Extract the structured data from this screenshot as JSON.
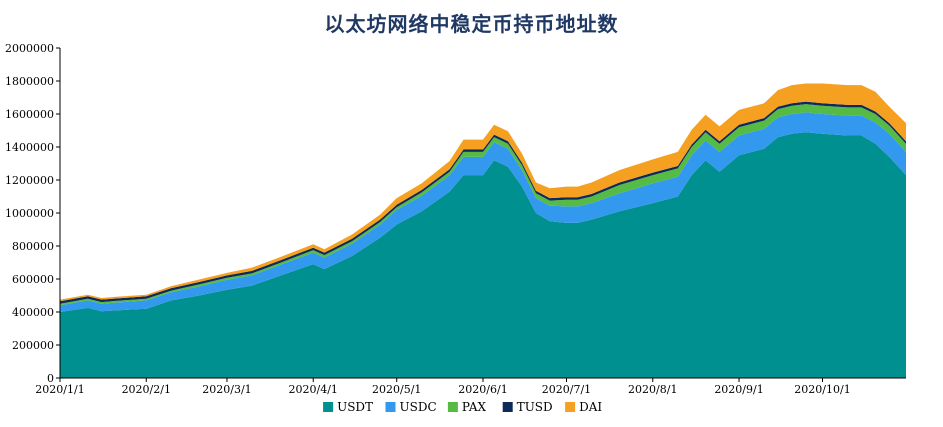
{
  "chart_data": {
    "type": "area",
    "stacked": true,
    "title": "以太坊网络中稳定币持币地址数",
    "xlabel": "",
    "ylabel": "",
    "ylim": [
      0,
      2000000
    ],
    "y_ticks": [
      0,
      200000,
      400000,
      600000,
      800000,
      1000000,
      1200000,
      1400000,
      1600000,
      1800000,
      2000000
    ],
    "y_tick_labels": [
      "0",
      "200000",
      "400000",
      "600000",
      "800000",
      "1000000",
      "1200000",
      "1400000",
      "1600000",
      "1800000",
      "2000000"
    ],
    "x_start": "2020-01-01",
    "x_end": "2020-10-31",
    "x_tick_dates": [
      "2020-01-01",
      "2020-02-01",
      "2020-03-01",
      "2020-04-01",
      "2020-05-01",
      "2020-06-01",
      "2020-07-01",
      "2020-08-01",
      "2020-09-01",
      "2020-10-01"
    ],
    "x_tick_labels": [
      "2020/1/1",
      "2020/2/1",
      "2020/3/1",
      "2020/4/1",
      "2020/5/1",
      "2020/6/1",
      "2020/7/1",
      "2020/8/1",
      "2020/9/1",
      "2020/10/1"
    ],
    "legend_position": "bottom",
    "grid": false,
    "x": [
      "2020-01-01",
      "2020-01-11",
      "2020-01-16",
      "2020-01-21",
      "2020-02-01",
      "2020-02-10",
      "2020-02-20",
      "2020-03-01",
      "2020-03-10",
      "2020-03-20",
      "2020-04-01",
      "2020-04-05",
      "2020-04-15",
      "2020-04-25",
      "2020-05-01",
      "2020-05-10",
      "2020-05-20",
      "2020-05-25",
      "2020-06-01",
      "2020-06-05",
      "2020-06-10",
      "2020-06-15",
      "2020-06-20",
      "2020-06-25",
      "2020-07-01",
      "2020-07-05",
      "2020-07-10",
      "2020-07-20",
      "2020-08-01",
      "2020-08-10",
      "2020-08-15",
      "2020-08-20",
      "2020-08-25",
      "2020-09-01",
      "2020-09-10",
      "2020-09-15",
      "2020-09-20",
      "2020-09-25",
      "2020-10-01",
      "2020-10-10",
      "2020-10-15",
      "2020-10-20",
      "2020-10-25",
      "2020-10-31"
    ],
    "series": [
      {
        "name": "USDT",
        "color": "#009090",
        "values": [
          400000,
          425000,
          405000,
          410000,
          420000,
          470000,
          500000,
          535000,
          560000,
          620000,
          690000,
          660000,
          740000,
          850000,
          930000,
          1010000,
          1130000,
          1230000,
          1230000,
          1320000,
          1280000,
          1160000,
          1000000,
          950000,
          940000,
          940000,
          960000,
          1010000,
          1060000,
          1100000,
          1230000,
          1320000,
          1250000,
          1350000,
          1390000,
          1460000,
          1480000,
          1490000,
          1480000,
          1470000,
          1470000,
          1420000,
          1340000,
          1230000
        ]
      },
      {
        "name": "USDC",
        "color": "#3399ee",
        "values": [
          40000,
          45000,
          45000,
          47000,
          50000,
          50000,
          55000,
          60000,
          62000,
          65000,
          70000,
          70000,
          75000,
          80000,
          90000,
          95000,
          100000,
          110000,
          110000,
          110000,
          110000,
          100000,
          90000,
          95000,
          100000,
          100000,
          100000,
          110000,
          120000,
          120000,
          120000,
          120000,
          120000,
          120000,
          120000,
          120000,
          120000,
          120000,
          120000,
          120000,
          120000,
          130000,
          140000,
          140000
        ]
      },
      {
        "name": "PAX",
        "color": "#55bb44",
        "values": [
          10000,
          10000,
          10000,
          10000,
          10000,
          10000,
          12000,
          12000,
          12000,
          12000,
          15000,
          15000,
          15000,
          15000,
          15000,
          20000,
          20000,
          30000,
          30000,
          30000,
          30000,
          30000,
          30000,
          30000,
          40000,
          40000,
          40000,
          50000,
          50000,
          50000,
          50000,
          50000,
          50000,
          50000,
          50000,
          50000,
          50000,
          50000,
          50000,
          50000,
          50000,
          50000,
          50000,
          50000
        ]
      },
      {
        "name": "TUSD",
        "color": "#0d2a5a",
        "values": [
          15000,
          15000,
          15000,
          15000,
          15000,
          15000,
          15000,
          15000,
          15000,
          15000,
          15000,
          15000,
          15000,
          15000,
          15000,
          15000,
          15000,
          15000,
          15000,
          15000,
          15000,
          15000,
          15000,
          15000,
          15000,
          15000,
          15000,
          15000,
          15000,
          15000,
          15000,
          15000,
          15000,
          15000,
          15000,
          15000,
          15000,
          15000,
          15000,
          15000,
          15000,
          15000,
          15000,
          15000
        ]
      },
      {
        "name": "DAI",
        "color": "#f5a020",
        "values": [
          10000,
          10000,
          10000,
          10000,
          10000,
          12000,
          15000,
          15000,
          20000,
          20000,
          20000,
          20000,
          25000,
          30000,
          40000,
          40000,
          50000,
          60000,
          60000,
          60000,
          60000,
          55000,
          50000,
          60000,
          65000,
          65000,
          70000,
          75000,
          80000,
          85000,
          90000,
          90000,
          90000,
          90000,
          90000,
          100000,
          110000,
          110000,
          120000,
          120000,
          120000,
          120000,
          100000,
          110000
        ]
      }
    ]
  }
}
